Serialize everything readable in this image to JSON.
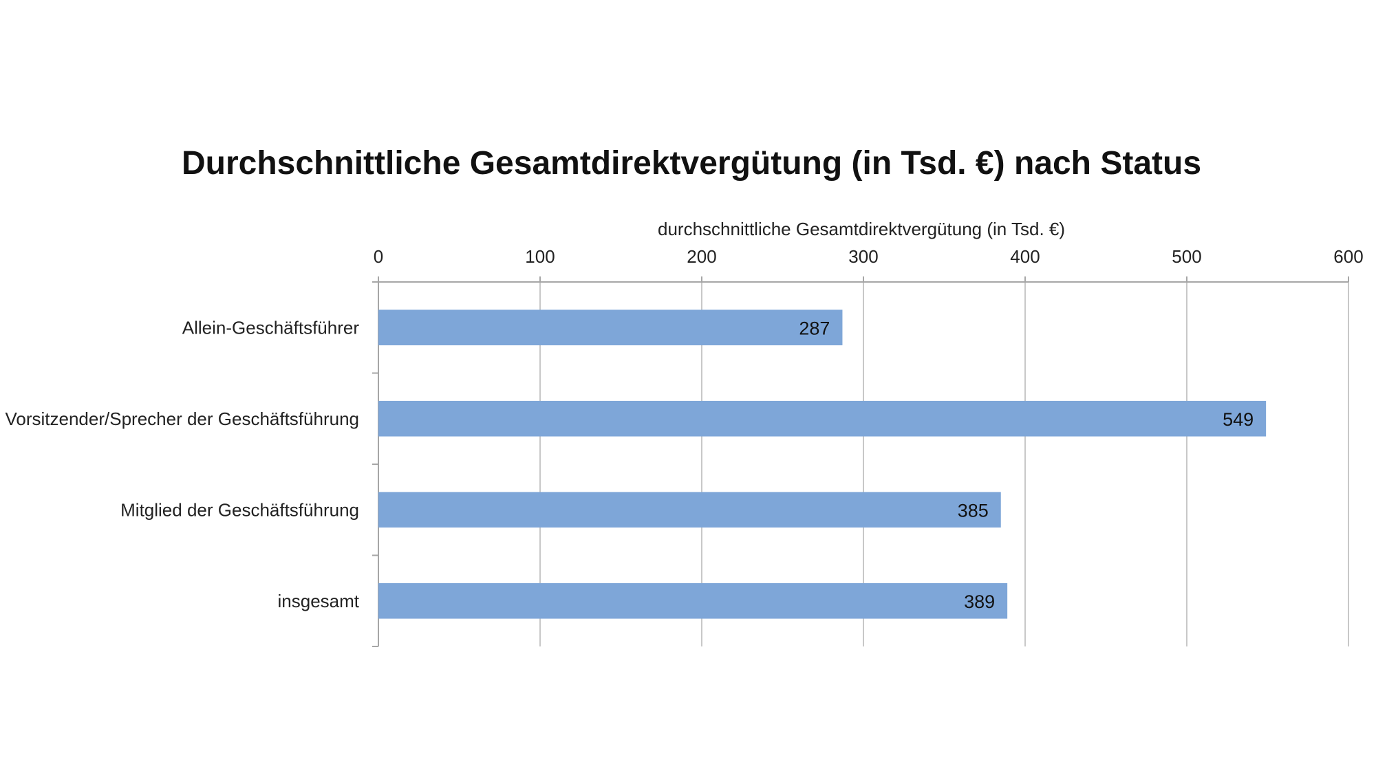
{
  "colors": {
    "bar": "#7ea6d8",
    "gridline": "#c8c8c8",
    "axis": "#a6a6a6"
  },
  "chart_data": {
    "type": "bar",
    "orientation": "horizontal",
    "title": "Durchschnittliche Gesamtdirektvergütung (in Tsd. €) nach Status",
    "xlabel": "durchschnittliche Gesamtdirektvergütung (in Tsd. €)",
    "ylabel": "",
    "xaxis_position": "top",
    "xlim": [
      0,
      600
    ],
    "ticks": [
      0,
      100,
      200,
      300,
      400,
      500,
      600
    ],
    "tick_labels": [
      "0",
      "100",
      "200",
      "300",
      "400",
      "500",
      "600"
    ],
    "categories": [
      "Allein-Geschäftsführer",
      "Vorsitzender/Sprecher der Geschäftsführung",
      "Mitglied der Geschäftsführung",
      "insgesamt"
    ],
    "values": [
      287,
      549,
      385,
      389
    ],
    "data_labels": [
      "287",
      "549",
      "385",
      "389"
    ],
    "grid": true,
    "legend": "none"
  }
}
